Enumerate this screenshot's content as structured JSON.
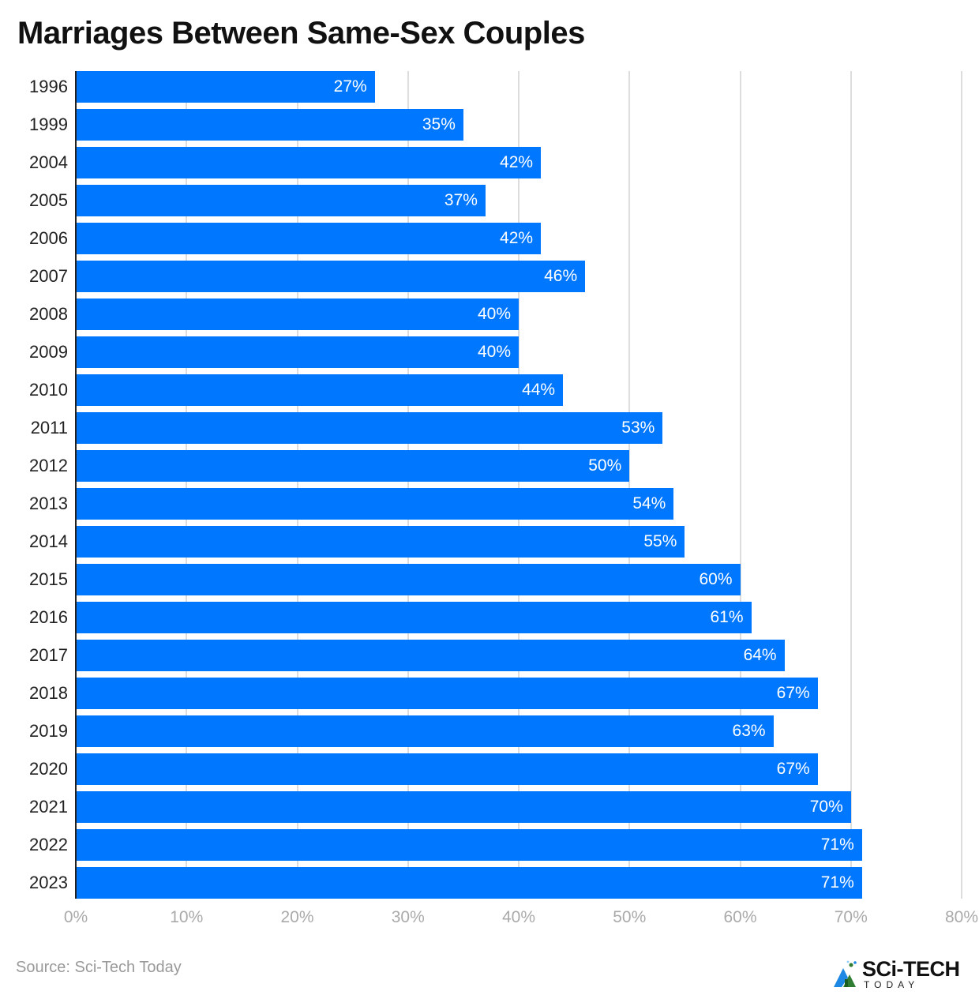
{
  "title": "Marriages Between Same-Sex Couples",
  "source": "Source: Sci-Tech Today",
  "logo": {
    "main": "SCi-TECH",
    "sub": "TODAY"
  },
  "colors": {
    "bar": "#0077ff",
    "grid": "#dddddd",
    "tick": "#aaaaaa"
  },
  "x_ticks": [
    "0%",
    "10%",
    "20%",
    "30%",
    "40%",
    "50%",
    "60%",
    "70%",
    "80%"
  ],
  "rows": [
    {
      "year": "1996",
      "label": "27%"
    },
    {
      "year": "1999",
      "label": "35%"
    },
    {
      "year": "2004",
      "label": "42%"
    },
    {
      "year": "2005",
      "label": "37%"
    },
    {
      "year": "2006",
      "label": "42%"
    },
    {
      "year": "2007",
      "label": "46%"
    },
    {
      "year": "2008",
      "label": "40%"
    },
    {
      "year": "2009",
      "label": "40%"
    },
    {
      "year": "2010",
      "label": "44%"
    },
    {
      "year": "2011",
      "label": "53%"
    },
    {
      "year": "2012",
      "label": "50%"
    },
    {
      "year": "2013",
      "label": "54%"
    },
    {
      "year": "2014",
      "label": "55%"
    },
    {
      "year": "2015",
      "label": "60%"
    },
    {
      "year": "2016",
      "label": "61%"
    },
    {
      "year": "2017",
      "label": "64%"
    },
    {
      "year": "2018",
      "label": "67%"
    },
    {
      "year": "2019",
      "label": "63%"
    },
    {
      "year": "2020",
      "label": "67%"
    },
    {
      "year": "2021",
      "label": "70%"
    },
    {
      "year": "2022",
      "label": "71%"
    },
    {
      "year": "2023",
      "label": "71%"
    }
  ],
  "chart_data": {
    "type": "bar",
    "orientation": "horizontal",
    "title": "Marriages Between Same-Sex Couples",
    "categories": [
      "1996",
      "1999",
      "2004",
      "2005",
      "2006",
      "2007",
      "2008",
      "2009",
      "2010",
      "2011",
      "2012",
      "2013",
      "2014",
      "2015",
      "2016",
      "2017",
      "2018",
      "2019",
      "2020",
      "2021",
      "2022",
      "2023"
    ],
    "values": [
      27,
      35,
      42,
      37,
      42,
      46,
      40,
      40,
      44,
      53,
      50,
      54,
      55,
      60,
      61,
      64,
      67,
      63,
      67,
      70,
      71,
      71
    ],
    "xlabel": "",
    "ylabel": "",
    "xlim": [
      0,
      80
    ],
    "x_tick_labels": [
      "0%",
      "10%",
      "20%",
      "30%",
      "40%",
      "50%",
      "60%",
      "70%",
      "80%"
    ],
    "value_format": "percent",
    "grid": "vertical",
    "legend": "none",
    "source": "Source: Sci-Tech Today"
  }
}
